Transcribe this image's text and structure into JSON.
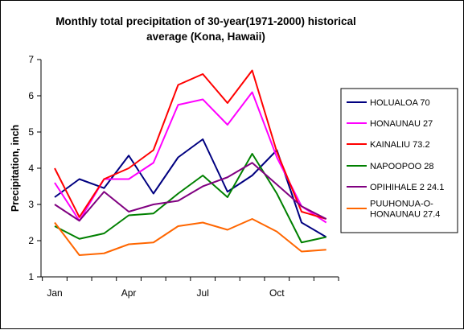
{
  "chart_data": {
    "type": "line",
    "title_lines": [
      "Monthly total precipitation of 30-year(1971-2000) historical",
      "average  (Kona, Hawaii)"
    ],
    "ylabel": "Precipitation, inch",
    "xlabel": "",
    "ylim": [
      1,
      7
    ],
    "yticks": [
      1,
      2,
      3,
      4,
      5,
      6,
      7
    ],
    "x": [
      1,
      2,
      3,
      4,
      5,
      6,
      7,
      8,
      9,
      10,
      11,
      12
    ],
    "xticks": [
      {
        "x": 1,
        "label": "Jan"
      },
      {
        "x": 4,
        "label": "Apr"
      },
      {
        "x": 7,
        "label": "Jul"
      },
      {
        "x": 10,
        "label": "Oct"
      }
    ],
    "grid": false,
    "legend_position": "right",
    "series": [
      {
        "name": "HOLUALOA 70",
        "color": "#000080",
        "values": [
          3.2,
          3.7,
          3.45,
          4.35,
          3.3,
          4.3,
          4.8,
          3.35,
          3.8,
          4.5,
          2.5,
          2.1
        ]
      },
      {
        "name": "HONAUNAU 27",
        "color": "#ff00ff",
        "values": [
          3.6,
          2.55,
          3.7,
          3.7,
          4.15,
          5.75,
          5.9,
          5.2,
          6.1,
          4.3,
          2.95,
          2.5
        ]
      },
      {
        "name": "KAINALIU 73.2",
        "color": "#ff0000",
        "values": [
          4.0,
          2.65,
          3.7,
          4.0,
          4.5,
          6.3,
          6.6,
          5.8,
          6.7,
          4.45,
          2.8,
          2.6
        ]
      },
      {
        "name": "NAPOOPOO 28",
        "color": "#008000",
        "values": [
          2.4,
          2.05,
          2.2,
          2.7,
          2.75,
          3.3,
          3.8,
          3.2,
          4.4,
          3.3,
          1.95,
          2.1
        ]
      },
      {
        "name": "OPIHIHALE 2 24.1",
        "color": "#800080",
        "values": [
          3.0,
          2.55,
          3.35,
          2.8,
          3.0,
          3.1,
          3.5,
          3.75,
          4.15,
          3.55,
          2.95,
          2.6
        ]
      },
      {
        "name": "PUUHONUA-O-\nHONAUNAU 27.4",
        "color": "#ff6600",
        "values": [
          2.5,
          1.6,
          1.65,
          1.9,
          1.95,
          2.4,
          2.5,
          2.3,
          2.6,
          2.25,
          1.7,
          1.75
        ]
      }
    ]
  }
}
